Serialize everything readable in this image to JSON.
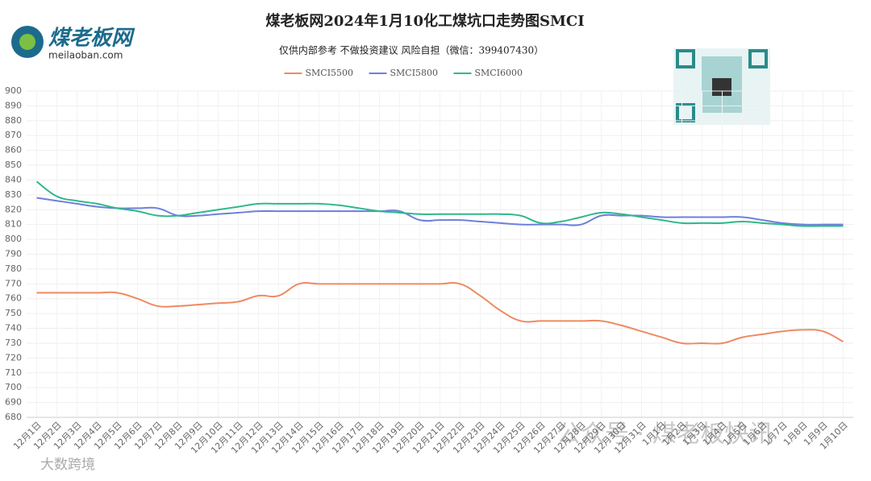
{
  "logo": {
    "name": "煤老板网",
    "domain": "meilaoban.com"
  },
  "watermarks": [
    "公众号 · 煤老板快讯",
    "大数跨境"
  ],
  "chart_data": {
    "type": "line",
    "title": "煤老板网2024年1月10化工煤坑口走势图SMCI",
    "subtitle": "仅供内部参考 不做投资建议 风险自担（微信：399407430）",
    "categories": [
      "12月1日",
      "12月2日",
      "12月3日",
      "12月4日",
      "12月5日",
      "12月6日",
      "12月7日",
      "12月8日",
      "12月9日",
      "12月10日",
      "12月11日",
      "12月12日",
      "12月13日",
      "12月14日",
      "12月15日",
      "12月16日",
      "12月17日",
      "12月18日",
      "12月19日",
      "12月20日",
      "12月21日",
      "12月22日",
      "12月23日",
      "12月24日",
      "12月25日",
      "12月26日",
      "12月27日",
      "12月28日",
      "12月29日",
      "12月30日",
      "12月31日",
      "1月1日",
      "1月2日",
      "1月3日",
      "1月4日",
      "1月5日",
      "1月6日",
      "1月7日",
      "1月8日",
      "1月9日",
      "1月10日"
    ],
    "series": [
      {
        "name": "SMCI5500",
        "color": "#ee8a62",
        "values": [
          764,
          764,
          764,
          764,
          764,
          760,
          755,
          755,
          756,
          757,
          758,
          762,
          762,
          770,
          770,
          770,
          770,
          770,
          770,
          770,
          770,
          770,
          762,
          752,
          745,
          745,
          745,
          745,
          745,
          742,
          738,
          734,
          730,
          730,
          730,
          734,
          736,
          738,
          739,
          738,
          731
        ]
      },
      {
        "name": "SMCI5800",
        "color": "#6f7fdc",
        "values": [
          828,
          826,
          824,
          822,
          821,
          821,
          821,
          816,
          816,
          817,
          818,
          819,
          819,
          819,
          819,
          819,
          819,
          819,
          819,
          813,
          813,
          813,
          812,
          811,
          810,
          810,
          810,
          810,
          816,
          816,
          816,
          815,
          815,
          815,
          815,
          815,
          813,
          811,
          810,
          810,
          810
        ]
      },
      {
        "name": "SMCI6000",
        "color": "#2fb88a",
        "values": [
          839,
          829,
          826,
          824,
          821,
          819,
          816,
          816,
          818,
          820,
          822,
          824,
          824,
          824,
          824,
          823,
          821,
          819,
          818,
          817,
          817,
          817,
          817,
          817,
          816,
          811,
          812,
          815,
          818,
          817,
          815,
          813,
          811,
          811,
          811,
          812,
          811,
          810,
          809,
          809,
          809
        ]
      }
    ],
    "ylim": [
      680,
      900
    ],
    "yticks": [
      680,
      690,
      700,
      710,
      720,
      730,
      740,
      750,
      760,
      770,
      780,
      790,
      800,
      810,
      820,
      830,
      840,
      850,
      860,
      870,
      880,
      890,
      900
    ],
    "grid": true,
    "legend": "top"
  }
}
